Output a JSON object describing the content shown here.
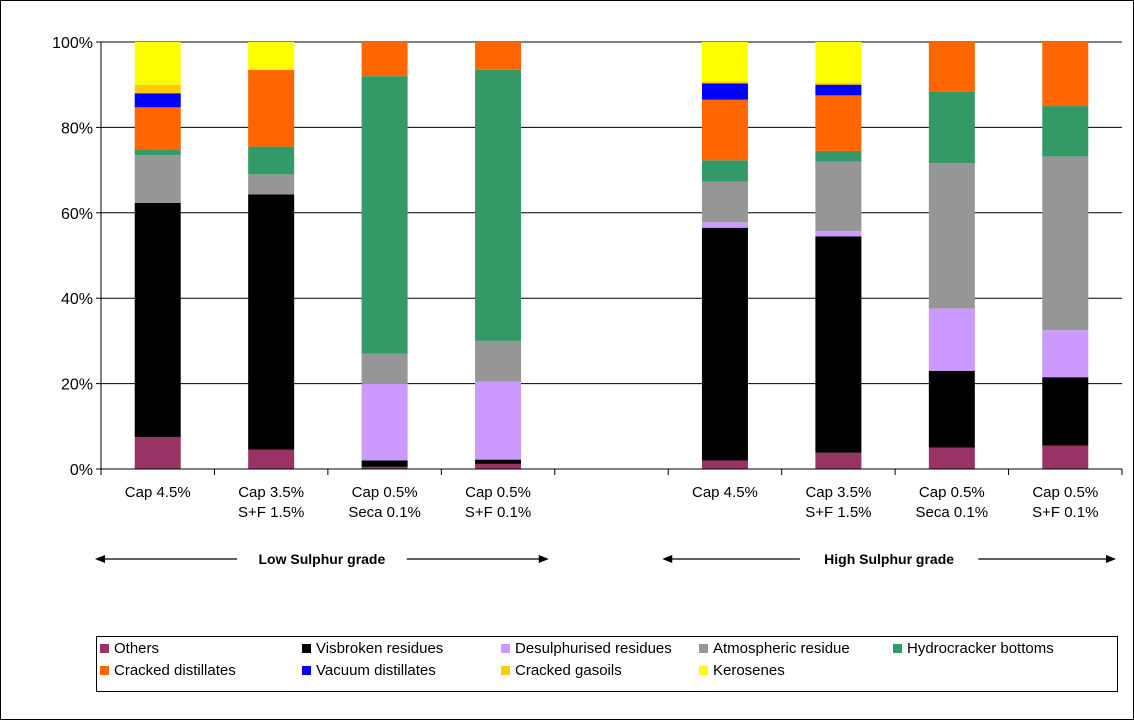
{
  "chart_data": {
    "type": "bar",
    "stacked": true,
    "percent": true,
    "ylim": [
      0,
      100
    ],
    "yticks": [
      "0%",
      "20%",
      "40%",
      "60%",
      "80%",
      "100%"
    ],
    "grid": true,
    "legend_position": "bottom",
    "categories": [
      [
        "Cap 4.5%",
        ""
      ],
      [
        "Cap 3.5%",
        "S+F 1.5%"
      ],
      [
        "Cap 0.5%",
        "Seca 0.1%"
      ],
      [
        "Cap 0.5%",
        "S+F 0.1%"
      ],
      [
        "",
        ""
      ],
      [
        "Cap 4.5%",
        ""
      ],
      [
        "Cap 3.5%",
        "S+F 1.5%"
      ],
      [
        "Cap 0.5%",
        "Seca 0.1%"
      ],
      [
        "Cap 0.5%",
        "S+F 0.1%"
      ]
    ],
    "groups": [
      {
        "label": "Low Sulphur grade",
        "from": 0,
        "to": 3
      },
      {
        "label": "High Sulphur grade",
        "from": 5,
        "to": 8
      }
    ],
    "series": [
      {
        "name": "Others",
        "color": "#993366",
        "values": [
          7.5,
          4.5,
          0.5,
          1.2,
          0,
          2.0,
          3.8,
          5.0,
          5.5
        ]
      },
      {
        "name": "Visbroken residues",
        "color": "#000000",
        "values": [
          54.8,
          59.8,
          1.5,
          1.0,
          0,
          54.5,
          50.7,
          18.0,
          16.0
        ]
      },
      {
        "name": "Desulphurised residues",
        "color": "#CC99FF",
        "values": [
          0,
          0,
          18.0,
          18.3,
          0,
          1.3,
          1.2,
          14.6,
          11.0
        ]
      },
      {
        "name": "Atmospheric residue",
        "color": "#969696",
        "values": [
          11.2,
          4.7,
          7.0,
          9.5,
          0,
          9.5,
          16.3,
          34.0,
          40.7
        ]
      },
      {
        "name": "Hydrocracker bottoms",
        "color": "#339966",
        "values": [
          1.2,
          6.5,
          65.0,
          63.5,
          0,
          5.0,
          2.5,
          16.7,
          11.8
        ]
      },
      {
        "name": "Cracked distillates",
        "color": "#FF6600",
        "values": [
          10.0,
          18.0,
          8.0,
          6.5,
          0,
          14.2,
          13.0,
          11.7,
          15.0
        ]
      },
      {
        "name": "Vacuum distillates",
        "color": "#0000FF",
        "values": [
          3.3,
          0,
          0,
          0,
          0,
          3.8,
          2.5,
          0,
          0
        ]
      },
      {
        "name": "Cracked gasoils",
        "color": "#FFCC00",
        "values": [
          2.0,
          0,
          0,
          0,
          0,
          0.5,
          0.5,
          0,
          0
        ]
      },
      {
        "name": "Kerosenes",
        "color": "#FFFF00",
        "values": [
          10.0,
          6.5,
          0,
          0,
          0,
          9.2,
          9.5,
          0,
          0
        ]
      }
    ]
  }
}
